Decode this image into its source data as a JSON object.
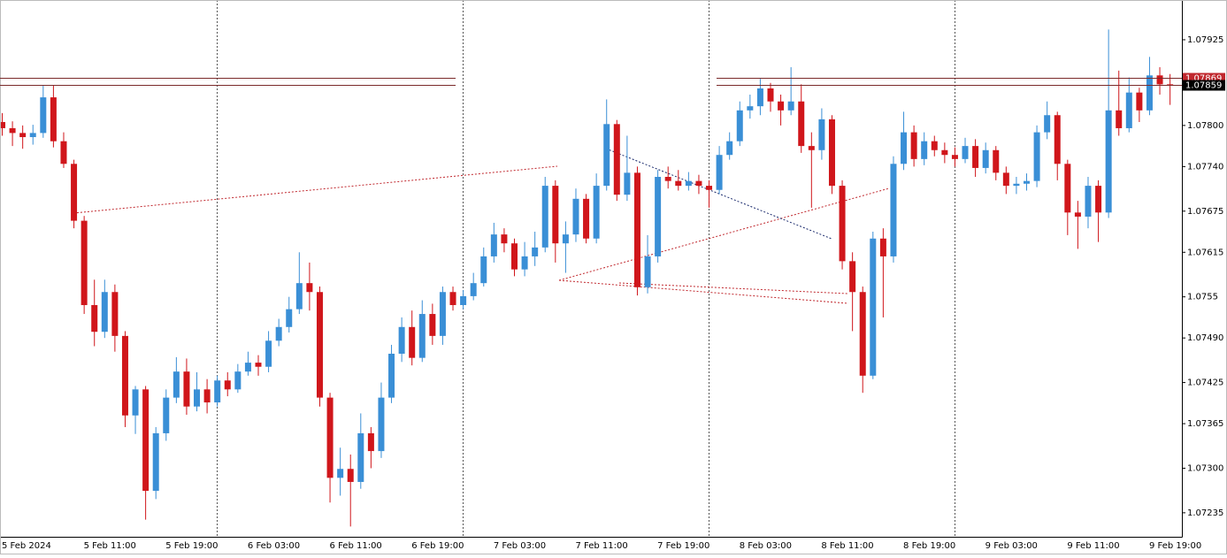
{
  "chart_data": {
    "type": "candlestick",
    "categories": [
      "5 Feb 2024",
      null,
      null,
      null,
      null,
      null,
      null,
      null,
      "5 Feb 11:00",
      null,
      null,
      null,
      null,
      null,
      null,
      null,
      "5 Feb 19:00",
      null,
      null,
      null,
      null,
      null,
      null,
      null,
      "6 Feb 03:00",
      null,
      null,
      null,
      null,
      null,
      null,
      null,
      "6 Feb 11:00",
      null,
      null,
      null,
      null,
      null,
      null,
      null,
      "6 Feb 19:00",
      null,
      null,
      null,
      null,
      null,
      null,
      null,
      "7 Feb 03:00",
      null,
      null,
      null,
      null,
      null,
      null,
      null,
      "7 Feb 11:00",
      null,
      null,
      null,
      null,
      null,
      null,
      null,
      "7 Feb 19:00",
      null,
      null,
      null,
      null,
      null,
      null,
      null,
      "8 Feb 03:00",
      null,
      null,
      null,
      null,
      null,
      null,
      null,
      "8 Feb 11:00",
      null,
      null,
      null,
      null,
      null,
      null,
      null,
      "8 Feb 19:00",
      null,
      null,
      null,
      null,
      null,
      null,
      null,
      "9 Feb 03:00",
      null,
      null,
      null,
      null,
      null,
      null,
      null,
      "9 Feb 11:00",
      null,
      null,
      null,
      null,
      null,
      null,
      null,
      "9 Feb 19:00",
      null,
      null
    ],
    "open": [
      1.07805,
      1.07796,
      1.07789,
      1.07783,
      1.07789,
      1.07841,
      1.07777,
      1.07744,
      1.07661,
      1.07538,
      1.07499,
      1.07557,
      1.07493,
      1.07377,
      1.07415,
      1.07267,
      1.07351,
      1.07403,
      1.07441,
      1.0739,
      1.07415,
      1.07396,
      1.07428,
      1.07415,
      1.07441,
      1.07454,
      1.07448,
      1.07486,
      1.07506,
      1.07532,
      1.0757,
      1.07557,
      1.07403,
      1.07286,
      1.07299,
      1.0728,
      1.07351,
      1.07325,
      1.07403,
      1.07467,
      1.07506,
      1.07461,
      1.07525,
      1.07493,
      1.07557,
      1.07538,
      1.07551,
      1.0757,
      1.07609,
      1.07641,
      1.07628,
      1.0759,
      1.07609,
      1.07622,
      1.07712,
      1.07628,
      1.07641,
      1.07693,
      1.07635,
      1.07712,
      1.07802,
      1.07699,
      1.07731,
      1.07564,
      1.07609,
      1.07725,
      1.07719,
      1.07712,
      1.07719,
      1.07712,
      1.07706,
      1.07757,
      1.07777,
      1.07822,
      1.07828,
      1.07854,
      1.07835,
      1.07822,
      1.07835,
      1.0777,
      1.07764,
      1.07809,
      1.07712,
      1.07602,
      1.07557,
      1.07435,
      1.07635,
      1.07609,
      1.07744,
      1.0779,
      1.07751,
      1.07777,
      1.07764,
      1.07757,
      1.07751,
      1.0777,
      1.07738,
      1.07764,
      1.07731,
      1.07712,
      1.07715,
      1.07719,
      1.0779,
      1.07815,
      1.07744,
      1.07673,
      1.07667,
      1.07712,
      1.07673,
      1.07822,
      1.07796,
      1.07848,
      1.07822,
      1.07873,
      1.0786
    ],
    "high": [
      1.07818,
      1.07806,
      1.078,
      1.07801,
      1.07859,
      1.07858,
      1.0779,
      1.0775,
      1.07668,
      1.07575,
      1.07575,
      1.07568,
      1.075,
      1.0742,
      1.0742,
      1.0736,
      1.07415,
      1.07462,
      1.0746,
      1.0744,
      1.0743,
      1.07435,
      1.0744,
      1.07452,
      1.0747,
      1.07465,
      1.075,
      1.07518,
      1.0755,
      1.07615,
      1.076,
      1.07565,
      1.0741,
      1.0733,
      1.0732,
      1.0738,
      1.0736,
      1.07425,
      1.0748,
      1.0752,
      1.0753,
      1.07545,
      1.0754,
      1.07565,
      1.07565,
      1.0756,
      1.07585,
      1.07622,
      1.07658,
      1.0765,
      1.07635,
      1.0763,
      1.07645,
      1.07725,
      1.0772,
      1.0766,
      1.07708,
      1.077,
      1.0773,
      1.07838,
      1.07808,
      1.07785,
      1.0774,
      1.0764,
      1.07735,
      1.0774,
      1.07735,
      1.07732,
      1.07728,
      1.0772,
      1.0777,
      1.0779,
      1.07835,
      1.07845,
      1.07868,
      1.07862,
      1.07845,
      1.07885,
      1.0786,
      1.0779,
      1.07825,
      1.07815,
      1.0772,
      1.07615,
      1.07565,
      1.07645,
      1.0765,
      1.07755,
      1.0782,
      1.078,
      1.0779,
      1.07785,
      1.07775,
      1.07768,
      1.07782,
      1.0778,
      1.07775,
      1.0777,
      1.0774,
      1.07725,
      1.0773,
      1.078,
      1.07835,
      1.0782,
      1.0775,
      1.0769,
      1.07725,
      1.0772,
      1.0794,
      1.0788,
      1.0787,
      1.07855,
      1.079,
      1.07885,
      1.07875
    ],
    "low": [
      1.07785,
      1.0777,
      1.07766,
      1.07772,
      1.07782,
      1.07768,
      1.07738,
      1.0765,
      1.07525,
      1.07478,
      1.0749,
      1.0747,
      1.0736,
      1.0735,
      1.07225,
      1.07255,
      1.0734,
      1.07395,
      1.07378,
      1.07383,
      1.0738,
      1.0739,
      1.07405,
      1.0741,
      1.07435,
      1.07435,
      1.0744,
      1.07478,
      1.07498,
      1.07525,
      1.0753,
      1.0739,
      1.0725,
      1.0726,
      1.07215,
      1.0727,
      1.073,
      1.07315,
      1.07395,
      1.07455,
      1.0745,
      1.07455,
      1.0748,
      1.0748,
      1.0753,
      1.07532,
      1.07545,
      1.07565,
      1.076,
      1.07615,
      1.0758,
      1.0758,
      1.07595,
      1.07615,
      1.076,
      1.07585,
      1.0763,
      1.07628,
      1.07628,
      1.07705,
      1.0769,
      1.0769,
      1.07552,
      1.07555,
      1.076,
      1.07708,
      1.07705,
      1.07705,
      1.077,
      1.0768,
      1.077,
      1.0775,
      1.0777,
      1.0781,
      1.07815,
      1.0782,
      1.078,
      1.07815,
      1.0776,
      1.0768,
      1.0775,
      1.077,
      1.0759,
      1.075,
      1.0741,
      1.0743,
      1.0752,
      1.076,
      1.07735,
      1.0774,
      1.07742,
      1.07755,
      1.07745,
      1.0774,
      1.07745,
      1.07725,
      1.0773,
      1.0772,
      1.077,
      1.077,
      1.07705,
      1.0771,
      1.0778,
      1.0772,
      1.0764,
      1.0762,
      1.0765,
      1.0763,
      1.07665,
      1.07785,
      1.0779,
      1.07805,
      1.07815,
      1.07845,
      1.0783
    ],
    "close": [
      1.07796,
      1.07789,
      1.07783,
      1.07789,
      1.07841,
      1.07777,
      1.07744,
      1.07661,
      1.07538,
      1.07499,
      1.07557,
      1.07493,
      1.07377,
      1.07415,
      1.07267,
      1.07351,
      1.07403,
      1.07441,
      1.0739,
      1.07415,
      1.07396,
      1.07428,
      1.07415,
      1.07441,
      1.07454,
      1.07448,
      1.07486,
      1.07506,
      1.07532,
      1.0757,
      1.07557,
      1.07403,
      1.07286,
      1.07299,
      1.0728,
      1.07351,
      1.07325,
      1.07403,
      1.07467,
      1.07506,
      1.07461,
      1.07525,
      1.07493,
      1.07557,
      1.07538,
      1.07551,
      1.0757,
      1.07609,
      1.07641,
      1.07628,
      1.0759,
      1.07609,
      1.07622,
      1.07712,
      1.07628,
      1.07641,
      1.07693,
      1.07635,
      1.07712,
      1.07802,
      1.07699,
      1.07731,
      1.07564,
      1.07609,
      1.07725,
      1.07719,
      1.07712,
      1.07719,
      1.07712,
      1.07706,
      1.07757,
      1.07777,
      1.07822,
      1.07828,
      1.07854,
      1.07835,
      1.07822,
      1.07835,
      1.0777,
      1.07764,
      1.07809,
      1.07712,
      1.07602,
      1.07557,
      1.07435,
      1.07635,
      1.07609,
      1.07744,
      1.0779,
      1.07751,
      1.07777,
      1.07764,
      1.07757,
      1.07751,
      1.0777,
      1.07738,
      1.07764,
      1.07731,
      1.07712,
      1.07715,
      1.07719,
      1.0779,
      1.07815,
      1.07744,
      1.07673,
      1.07667,
      1.07712,
      1.07673,
      1.07822,
      1.07796,
      1.07848,
      1.07822,
      1.07873,
      1.0786,
      1.07859
    ],
    "up_color": "#3a8fd6",
    "down_color": "#d0161b",
    "ylim": [
      1.072,
      1.07983
    ],
    "yticks": [
      1.07925,
      {
        "value": 1.078,
        "label": "1.07800"
      },
      {
        "value": 1.0774,
        "label": "1.07740"
      },
      1.07675,
      1.07615,
      1.0755,
      {
        "value": 1.0749,
        "label": "1.07490"
      },
      1.07425,
      1.07365,
      {
        "value": 1.073,
        "label": "1.07300"
      },
      1.07235
    ],
    "levels": [
      {
        "value": 1.07869,
        "color": "#c0272d"
      },
      {
        "value": 1.07859,
        "color": "#000000"
      }
    ]
  }
}
